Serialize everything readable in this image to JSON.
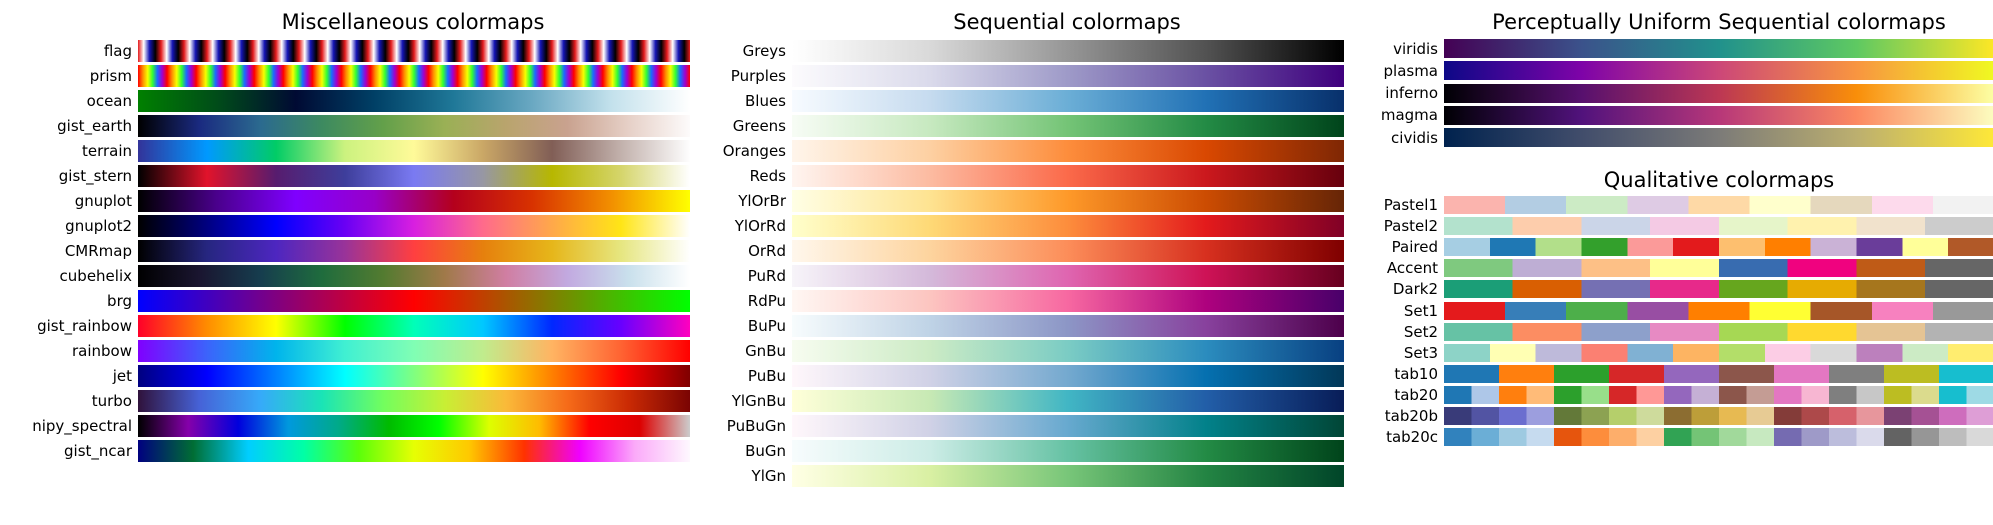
{
  "panels": {
    "misc": {
      "title": "Miscellaneous colormaps",
      "colormaps": [
        {
          "name": "flag",
          "kind": "repeat",
          "colors": [
            "#e41a1c",
            "#ffffff",
            "#1414b4",
            "#000000"
          ],
          "reps": 24
        },
        {
          "name": "prism",
          "kind": "repeat",
          "colors": [
            "#ff0000",
            "#ff8c00",
            "#f5ff00",
            "#33ff33",
            "#1a6bff",
            "#a000d0"
          ],
          "reps": 19
        },
        {
          "name": "ocean",
          "colors": [
            "#008000",
            "#004c19",
            "#000a33",
            "#004066",
            "#1f7898",
            "#6aa8c2",
            "#c3e1ec",
            "#ffffff"
          ]
        },
        {
          "name": "gist_earth",
          "colors": [
            "#000000",
            "#1a2a80",
            "#2b6a8f",
            "#3d8a60",
            "#63a04a",
            "#9ab055",
            "#b9a46d",
            "#c9a28f",
            "#e6d0c7",
            "#fdfbfb"
          ]
        },
        {
          "name": "terrain",
          "colors": [
            "#333399",
            "#0099ff",
            "#01cc66",
            "#ccf27f",
            "#fffa99",
            "#caa766",
            "#815e56",
            "#c2b1ac",
            "#fefefe"
          ]
        },
        {
          "name": "gist_stern",
          "colors": [
            "#000000",
            "#e1132b",
            "#571c6e",
            "#3e3e9b",
            "#7a7af2",
            "#9797a3",
            "#b7b700",
            "#d5d56b",
            "#ffffff"
          ]
        },
        {
          "name": "gnuplot",
          "colors": [
            "#000000",
            "#4a008c",
            "#7f00ff",
            "#9800c7",
            "#b4001d",
            "#d83200",
            "#f28f00",
            "#ffff00"
          ]
        },
        {
          "name": "gnuplot2",
          "colors": [
            "#000000",
            "#000080",
            "#0000ff",
            "#6a00f4",
            "#d81fe0",
            "#ff6b8b",
            "#ffa84a",
            "#ffe516",
            "#ffffff"
          ]
        },
        {
          "name": "CMRmap",
          "colors": [
            "#000000",
            "#262680",
            "#4d26c0",
            "#993399",
            "#ff3f40",
            "#e6800d",
            "#e6b61a",
            "#e6e680",
            "#ffffff"
          ]
        },
        {
          "name": "cubehelix",
          "colors": [
            "#000000",
            "#1a1530",
            "#163d4e",
            "#1f6c3d",
            "#537b30",
            "#a07949",
            "#d07ea2",
            "#c2a9e0",
            "#c9e0ec",
            "#ffffff"
          ]
        },
        {
          "name": "brg",
          "colors": [
            "#0000ff",
            "#800080",
            "#ff0000",
            "#808000",
            "#00ff00"
          ]
        },
        {
          "name": "gist_rainbow",
          "colors": [
            "#ff0029",
            "#ff8c00",
            "#ffff00",
            "#00ff00",
            "#00ffb8",
            "#00c8ff",
            "#0028ff",
            "#6800ff",
            "#ff00bf"
          ]
        },
        {
          "name": "rainbow",
          "colors": [
            "#8000ff",
            "#3c63fb",
            "#00b4ec",
            "#40f0d2",
            "#80feb4",
            "#c0ec8d",
            "#ffb462",
            "#ff6332",
            "#ff0000"
          ]
        },
        {
          "name": "jet",
          "colors": [
            "#000080",
            "#0000ff",
            "#0080ff",
            "#00ffff",
            "#80ff80",
            "#ffff00",
            "#ff8000",
            "#ff0000",
            "#800000"
          ]
        },
        {
          "name": "turbo",
          "colors": [
            "#30123b",
            "#4662d7",
            "#36aaf9",
            "#1ae4b6",
            "#72fe5e",
            "#c8ef34",
            "#faba39",
            "#f66b19",
            "#ca2a04",
            "#7a0403"
          ]
        },
        {
          "name": "nipy_spectral",
          "colors": [
            "#000000",
            "#8500aa",
            "#0000dd",
            "#0099dd",
            "#00aa88",
            "#00bb00",
            "#00ff00",
            "#ddff00",
            "#ffbb00",
            "#ff0000",
            "#dd0000",
            "#cccccc"
          ]
        },
        {
          "name": "gist_ncar",
          "colors": [
            "#000080",
            "#006e34",
            "#00ceff",
            "#00ffa6",
            "#5bff0a",
            "#e6ff03",
            "#ffc800",
            "#ff3200",
            "#ef00ff",
            "#fbaaf9",
            "#fef8fe"
          ]
        }
      ]
    },
    "sequential": {
      "title": "Sequential colormaps",
      "colormaps": [
        {
          "name": "Greys",
          "colors": [
            "#ffffff",
            "#d9d9d9",
            "#969696",
            "#525252",
            "#000000"
          ]
        },
        {
          "name": "Purples",
          "colors": [
            "#fcfbfd",
            "#dadaeb",
            "#9e9ac8",
            "#6a51a3",
            "#3f007d"
          ]
        },
        {
          "name": "Blues",
          "colors": [
            "#f7fbff",
            "#c6dbef",
            "#6baed6",
            "#2171b5",
            "#08306b"
          ]
        },
        {
          "name": "Greens",
          "colors": [
            "#f7fcf5",
            "#c7e9c0",
            "#74c476",
            "#238b45",
            "#00441b"
          ]
        },
        {
          "name": "Oranges",
          "colors": [
            "#fff5eb",
            "#fdd0a2",
            "#fd8d3c",
            "#d94801",
            "#7f2704"
          ]
        },
        {
          "name": "Reds",
          "colors": [
            "#fff5f0",
            "#fcbba1",
            "#fb6a4a",
            "#cb181d",
            "#67000d"
          ]
        },
        {
          "name": "YlOrBr",
          "colors": [
            "#ffffe5",
            "#fee391",
            "#fe9929",
            "#cc4c02",
            "#662506"
          ]
        },
        {
          "name": "YlOrRd",
          "colors": [
            "#ffffcc",
            "#fed976",
            "#fd8d3c",
            "#e31a1c",
            "#800026"
          ]
        },
        {
          "name": "OrRd",
          "colors": [
            "#fff7ec",
            "#fdd49e",
            "#fc8d59",
            "#d7301f",
            "#7f0000"
          ]
        },
        {
          "name": "PuRd",
          "colors": [
            "#f7f4f9",
            "#d4b9da",
            "#df65b0",
            "#ce1256",
            "#67001f"
          ]
        },
        {
          "name": "RdPu",
          "colors": [
            "#fff7f3",
            "#fcc5c0",
            "#f768a1",
            "#ae017e",
            "#49006a"
          ]
        },
        {
          "name": "BuPu",
          "colors": [
            "#f7fcfd",
            "#bfd3e6",
            "#8c96c6",
            "#88419d",
            "#4d004b"
          ]
        },
        {
          "name": "GnBu",
          "colors": [
            "#f7fcf0",
            "#ccebc5",
            "#7bccc4",
            "#2b8cbe",
            "#084081"
          ]
        },
        {
          "name": "PuBu",
          "colors": [
            "#fff7fb",
            "#d0d1e6",
            "#74a9cf",
            "#0570b0",
            "#023858"
          ]
        },
        {
          "name": "YlGnBu",
          "colors": [
            "#ffffd9",
            "#c7e9b4",
            "#41b6c4",
            "#225ea8",
            "#081d58"
          ]
        },
        {
          "name": "PuBuGn",
          "colors": [
            "#fff7fb",
            "#d0d1e6",
            "#67a9cf",
            "#02818a",
            "#014636"
          ]
        },
        {
          "name": "BuGn",
          "colors": [
            "#f7fcfd",
            "#ccece6",
            "#66c2a4",
            "#238b45",
            "#00441b"
          ]
        },
        {
          "name": "YlGn",
          "colors": [
            "#ffffe5",
            "#d9f0a3",
            "#78c679",
            "#238443",
            "#004529"
          ]
        }
      ]
    },
    "perceptual": {
      "title": "Perceptually Uniform Sequential colormaps",
      "colormaps": [
        {
          "name": "viridis",
          "colors": [
            "#440154",
            "#3b528b",
            "#21918c",
            "#5ec962",
            "#fde725"
          ]
        },
        {
          "name": "plasma",
          "colors": [
            "#0d0887",
            "#7e03a8",
            "#cc4778",
            "#f89540",
            "#f0f921"
          ]
        },
        {
          "name": "inferno",
          "colors": [
            "#000004",
            "#57106e",
            "#bc3754",
            "#f98e09",
            "#fcffa4"
          ]
        },
        {
          "name": "magma",
          "colors": [
            "#000004",
            "#51127c",
            "#b73779",
            "#fc8961",
            "#fcfdbf"
          ]
        },
        {
          "name": "cividis",
          "colors": [
            "#00224e",
            "#414d6b",
            "#7c7b78",
            "#bcaf6f",
            "#fee838"
          ]
        }
      ]
    },
    "qualitative": {
      "title": "Qualitative colormaps",
      "colormaps": [
        {
          "name": "Pastel1",
          "kind": "discrete",
          "colors": [
            "#fbb4ae",
            "#b3cde3",
            "#ccebc5",
            "#decbe4",
            "#fed9a6",
            "#ffffcc",
            "#e5d8bd",
            "#fddaec",
            "#f2f2f2"
          ]
        },
        {
          "name": "Pastel2",
          "kind": "discrete",
          "colors": [
            "#b3e2cd",
            "#fdcdac",
            "#cbd5e8",
            "#f4cae4",
            "#e6f5c9",
            "#fff2ae",
            "#f1e2cc",
            "#cccccc"
          ]
        },
        {
          "name": "Paired",
          "kind": "discrete",
          "colors": [
            "#a6cee3",
            "#1f78b4",
            "#b2df8a",
            "#33a02c",
            "#fb9a99",
            "#e31a1c",
            "#fdbf6f",
            "#ff7f00",
            "#cab2d6",
            "#6a3d9a",
            "#ffff99",
            "#b15928"
          ]
        },
        {
          "name": "Accent",
          "kind": "discrete",
          "colors": [
            "#7fc97f",
            "#beaed4",
            "#fdc086",
            "#ffff99",
            "#386cb0",
            "#f0027f",
            "#bf5b17",
            "#666666"
          ]
        },
        {
          "name": "Dark2",
          "kind": "discrete",
          "colors": [
            "#1b9e77",
            "#d95f02",
            "#7570b3",
            "#e7298a",
            "#66a61e",
            "#e6ab02",
            "#a6761d",
            "#666666"
          ]
        },
        {
          "name": "Set1",
          "kind": "discrete",
          "colors": [
            "#e41a1c",
            "#377eb8",
            "#4daf4a",
            "#984ea3",
            "#ff7f00",
            "#ffff33",
            "#a65628",
            "#f781bf",
            "#999999"
          ]
        },
        {
          "name": "Set2",
          "kind": "discrete",
          "colors": [
            "#66c2a5",
            "#fc8d62",
            "#8da0cb",
            "#e78ac3",
            "#a6d854",
            "#ffd92f",
            "#e5c494",
            "#b3b3b3"
          ]
        },
        {
          "name": "Set3",
          "kind": "discrete",
          "colors": [
            "#8dd3c7",
            "#ffffb3",
            "#bebada",
            "#fb8072",
            "#80b1d3",
            "#fdb462",
            "#b3de69",
            "#fccde5",
            "#d9d9d9",
            "#bc80bd",
            "#ccebc5",
            "#ffed6f"
          ]
        },
        {
          "name": "tab10",
          "kind": "discrete",
          "colors": [
            "#1f77b4",
            "#ff7f0e",
            "#2ca02c",
            "#d62728",
            "#9467bd",
            "#8c564b",
            "#e377c2",
            "#7f7f7f",
            "#bcbd22",
            "#17becf"
          ]
        },
        {
          "name": "tab20",
          "kind": "discrete",
          "colors": [
            "#1f77b4",
            "#aec7e8",
            "#ff7f0e",
            "#ffbb78",
            "#2ca02c",
            "#98df8a",
            "#d62728",
            "#ff9896",
            "#9467bd",
            "#c5b0d5",
            "#8c564b",
            "#c49c94",
            "#e377c2",
            "#f7b6d2",
            "#7f7f7f",
            "#c7c7c7",
            "#bcbd22",
            "#dbdb8d",
            "#17becf",
            "#9edae5"
          ]
        },
        {
          "name": "tab20b",
          "kind": "discrete",
          "colors": [
            "#393b79",
            "#5254a3",
            "#6b6ecf",
            "#9c9ede",
            "#637939",
            "#8ca252",
            "#b5cf6b",
            "#cedb9c",
            "#8c6d31",
            "#bd9e39",
            "#e7ba52",
            "#e7cb94",
            "#843c39",
            "#ad494a",
            "#d6616b",
            "#e7969c",
            "#7b4173",
            "#a55194",
            "#ce6dbd",
            "#de9ed6"
          ]
        },
        {
          "name": "tab20c",
          "kind": "discrete",
          "colors": [
            "#3182bd",
            "#6baed6",
            "#9ecae1",
            "#c6dbef",
            "#e6550d",
            "#fd8d3c",
            "#fdae6b",
            "#fdd0a2",
            "#31a354",
            "#74c476",
            "#a1d99b",
            "#c7e9c0",
            "#756bb1",
            "#9e9ac8",
            "#bcbddc",
            "#dadaeb",
            "#636363",
            "#969696",
            "#bdbdbd",
            "#d9d9d9"
          ]
        }
      ]
    }
  }
}
